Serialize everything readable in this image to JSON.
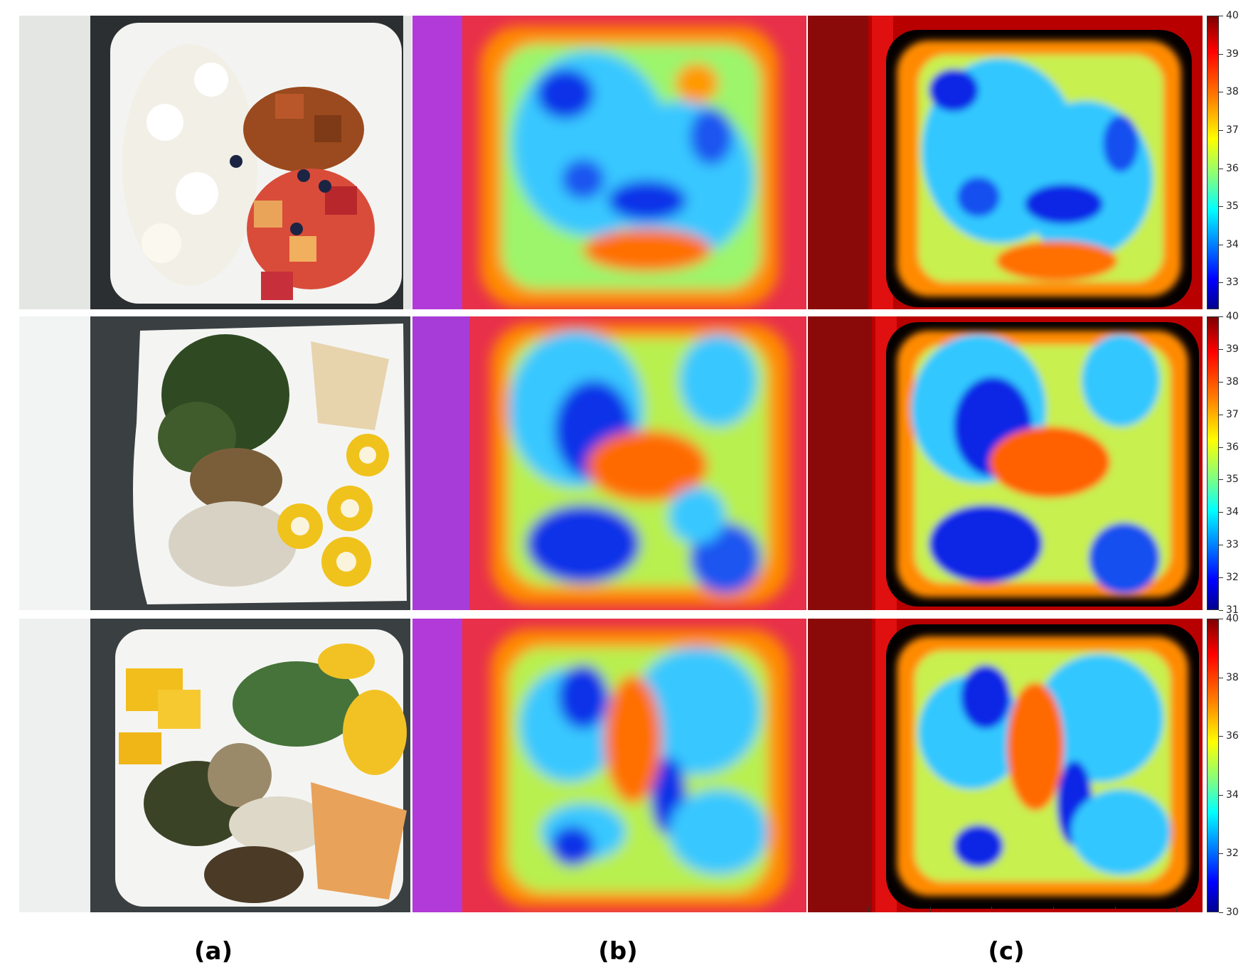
{
  "captions": {
    "a": "(a)",
    "b": "(b)",
    "c": "(c)"
  },
  "colorbars": [
    {
      "ticks": [
        "40",
        "39",
        "38",
        "37",
        "36",
        "35",
        "34",
        "33"
      ],
      "min": 32.3,
      "max": 40
    },
    {
      "ticks": [
        "40",
        "39",
        "38",
        "37",
        "36",
        "35",
        "34",
        "33",
        "32",
        "31"
      ],
      "min": 31,
      "max": 40
    },
    {
      "ticks": [
        "40",
        "38",
        "36",
        "34",
        "32",
        "30"
      ],
      "min": 30,
      "max": 40
    }
  ],
  "colors": {
    "hot": "#d80000",
    "warm": "#ff7a00",
    "mid": "#d8ff30",
    "cool": "#30c8ff",
    "cold": "#0a28e6"
  },
  "icons": [
    "plate-photo",
    "thermal-map-predicted",
    "thermal-map-measured"
  ]
}
